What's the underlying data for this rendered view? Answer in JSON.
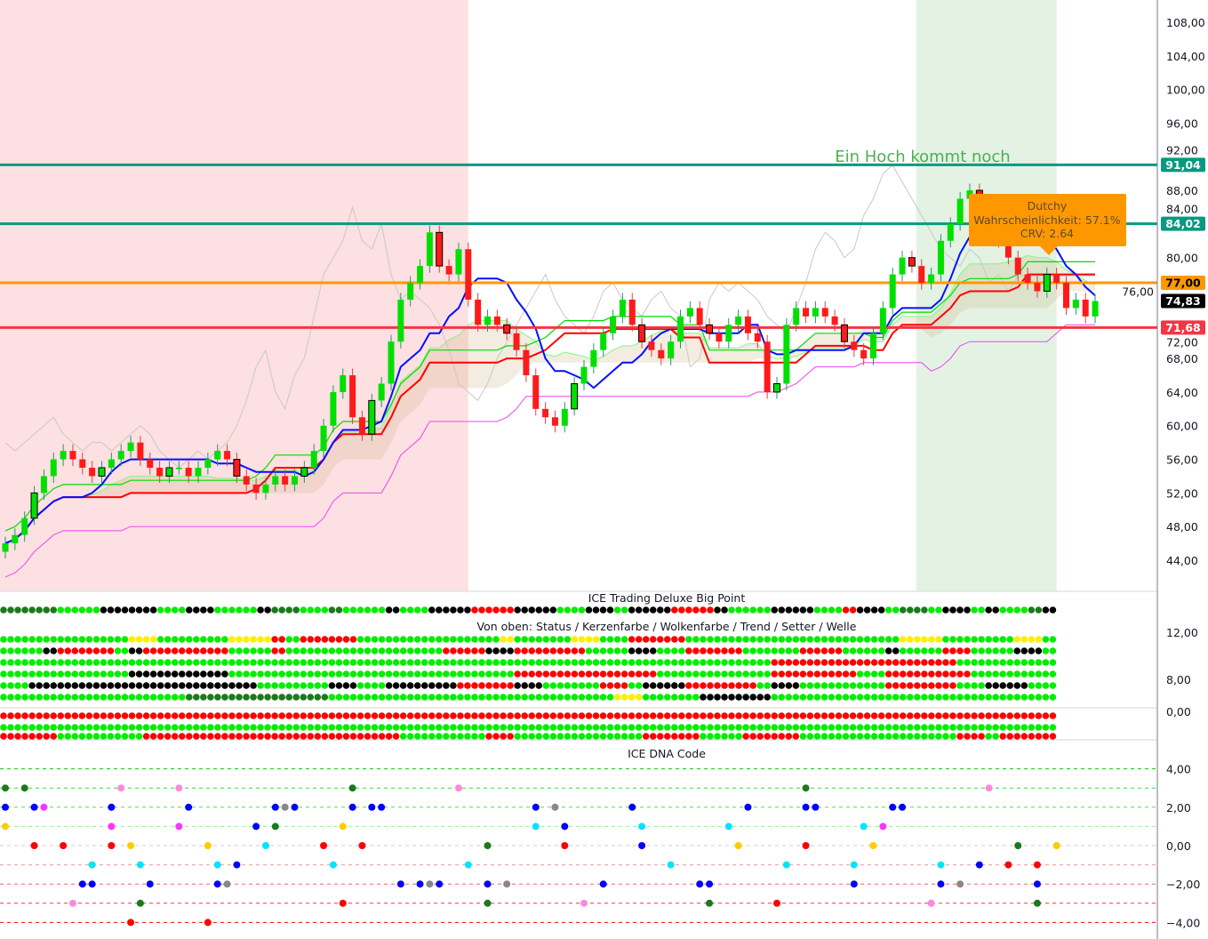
{
  "chart_data": {
    "type": "candlestick",
    "main": {
      "y_axis_ticks": [
        "108,00",
        "104,00",
        "100,00",
        "96,00",
        "92,00",
        "88,00",
        "84,00",
        "80,00",
        "76,00",
        "72,00",
        "68,00",
        "64,00",
        "60,00",
        "56,00",
        "52,00",
        "48,00",
        "44,00"
      ],
      "y_axis_values": [
        108,
        104,
        100,
        96,
        92,
        88,
        84,
        80,
        76,
        72,
        68,
        64,
        60,
        56,
        52,
        48,
        44
      ],
      "ylim": [
        42.5,
        110
      ],
      "closes": [
        46,
        47,
        49,
        52,
        54,
        56,
        57,
        56,
        55,
        54,
        55,
        56,
        57,
        58,
        56,
        55,
        54,
        55,
        55,
        54,
        55,
        56,
        57,
        56,
        54,
        53,
        52,
        53,
        54,
        53,
        54,
        55,
        57,
        60,
        64,
        66,
        61,
        59,
        63,
        65,
        70,
        75,
        77,
        79,
        83,
        79,
        78,
        81,
        75,
        72,
        73,
        72,
        71,
        69,
        66,
        62,
        61,
        60,
        62,
        65,
        67,
        69,
        71,
        73,
        75,
        72,
        70,
        69,
        68,
        70,
        73,
        74,
        72,
        71,
        70,
        72,
        73,
        71,
        70,
        64,
        65,
        72,
        74,
        73,
        74,
        73,
        72,
        70,
        69,
        68,
        71,
        74,
        78,
        80,
        79,
        77,
        78,
        82,
        84,
        87,
        88,
        86,
        84,
        82,
        80,
        78,
        77,
        76,
        78,
        77,
        74,
        75,
        73,
        74.83
      ],
      "levels": [
        {
          "value": 91.04,
          "label": "91,04",
          "color": "#089981"
        },
        {
          "value": 84.02,
          "label": "84,02",
          "color": "#089981"
        },
        {
          "value": 77.0,
          "label": "77,00",
          "color": "#ff9800"
        },
        {
          "value": 71.68,
          "label": "71,68",
          "color": "#f23645"
        }
      ],
      "last_price": {
        "value": 74.83,
        "label": "74,83"
      },
      "annotation": "Ein Hoch kommt noch",
      "callout": {
        "title": "Dutchy",
        "line1": "Wahrscheinlichkeit: 57.1%",
        "line2": "CRV: 2.64"
      },
      "zones": [
        {
          "from_index": 0,
          "to_index": 48,
          "color": "#fde0e2"
        },
        {
          "from_index": 95,
          "to_index": 109,
          "color": "#e3f2e3"
        }
      ]
    },
    "big_point": {
      "title": "ICE Trading Deluxe Big Point",
      "subtitle": "Von oben: Status / Kerzenfarbe / Wolkenfarbe / Trend / Setter / Welle",
      "y_axis_ticks": [
        "12,00",
        "8,00",
        "0,00"
      ],
      "rows": [
        "ddddgggkkkkggkkgggkddggdgggkggkkkrrrkkkggkkgkkkrrrkgggkkkggrkkgddgkkgkggdkkrrrrrr",
        "gggggggggyygggggyyyrgrrrrggggggggggyggggyyggrrrrgggggggggggggggyyygggggyyggrrrgrr",
        "gggkrrrrgkrrrrrrgggrgggggggggggrrrkkrrrrrgggkkggrrrrggggrrrgggkgggrrgggkkgrkkkkrrr",
        "ggggggggggggggggggggggggggggggggggggggggggggggggggggggrrrrrrrrrrrrrggggggggggggggggg",
        "gggggggggkkkkkkkggggggggggggggggggggrrrrrrrrrrggggggggrrrrrrggrrrrrrggggggkkkkgrrrrr",
        "ggkkkkkkkkkkkkkkkkgggggkkggkkkkkrrrrkkggggrrgkkkrrrrrgkkggggggrrrrrggkkkggkkkrrrrrr",
        "gggggggggggggddddddddddggggggggggggggggggggyyggggkkkkkgggggggggggggggggggggggggggrr",
        "rrrrrrrrrrrrrrrrrrrrrrrrrrrrrrrrrrrrrrrrrrrrrrrrrrrrrrrrrrrrrrrrrrrrrrrrrrrrrrrrrrr",
        "ggggggggggggggggggggggggggggggggggggggggggggggggggggggggggggggggggggggggggggggggggg",
        "rrrrggggggrrrrrrrrrrrrrrrrrrggggggrrgggggggggrrrrgggrrrrgggggggggggrrgrrrrrrrrrrrrr"
      ]
    },
    "dna_code": {
      "title": "ICE DNA Code",
      "y_axis_ticks": [
        "4,00",
        "2,00",
        "0,00",
        "−2,00",
        "−4,00"
      ],
      "y_axis_values": [
        4,
        2,
        0,
        -2,
        -4
      ],
      "points": [
        [
          0,
          3,
          "#1b7a1b"
        ],
        [
          2,
          3,
          "#1b7a1b"
        ],
        [
          12,
          3,
          "#ff88dd"
        ],
        [
          18,
          3,
          "#ff88dd"
        ],
        [
          36,
          3,
          "#1b7a1b"
        ],
        [
          47,
          3,
          "#ff88dd"
        ],
        [
          83,
          3,
          "#1b7a1b"
        ],
        [
          102,
          3,
          "#ff88dd"
        ],
        [
          0,
          2,
          "#0000ff"
        ],
        [
          3,
          2,
          "#0000ff"
        ],
        [
          4,
          2,
          "#ff33ff"
        ],
        [
          11,
          2,
          "#0000ff"
        ],
        [
          19,
          2,
          "#0000ff"
        ],
        [
          28,
          2,
          "#0000ff"
        ],
        [
          29,
          2,
          "#888888"
        ],
        [
          30,
          2,
          "#0000ff"
        ],
        [
          36,
          2,
          "#0000ff"
        ],
        [
          38,
          2,
          "#0000ff"
        ],
        [
          39,
          2,
          "#0000ff"
        ],
        [
          55,
          2,
          "#0000ff"
        ],
        [
          57,
          2,
          "#888888"
        ],
        [
          65,
          2,
          "#0000ff"
        ],
        [
          77,
          2,
          "#0000ff"
        ],
        [
          83,
          2,
          "#0000ff"
        ],
        [
          84,
          2,
          "#0000ff"
        ],
        [
          92,
          2,
          "#0000ff"
        ],
        [
          93,
          2,
          "#0000ff"
        ],
        [
          0,
          1,
          "#ffcc00"
        ],
        [
          11,
          1,
          "#ff33ff"
        ],
        [
          18,
          1,
          "#ff33ff"
        ],
        [
          26,
          1,
          "#0000ff"
        ],
        [
          28,
          1,
          "#1b7a1b"
        ],
        [
          35,
          1,
          "#ffcc00"
        ],
        [
          55,
          1,
          "#00e5ff"
        ],
        [
          58,
          1,
          "#0000ff"
        ],
        [
          66,
          1,
          "#00e5ff"
        ],
        [
          75,
          1,
          "#00e5ff"
        ],
        [
          89,
          1,
          "#00e5ff"
        ],
        [
          91,
          1,
          "#ff33ff"
        ],
        [
          3,
          0,
          "#ff0000"
        ],
        [
          6,
          0,
          "#ff0000"
        ],
        [
          11,
          0,
          "#ff0000"
        ],
        [
          13,
          0,
          "#ffcc00"
        ],
        [
          21,
          0,
          "#ffcc00"
        ],
        [
          27,
          0,
          "#00e5ff"
        ],
        [
          33,
          0,
          "#ff0000"
        ],
        [
          37,
          0,
          "#ff0000"
        ],
        [
          50,
          0,
          "#1b7a1b"
        ],
        [
          58,
          0,
          "#ff0000"
        ],
        [
          66,
          0,
          "#0000ff"
        ],
        [
          76,
          0,
          "#ffcc00"
        ],
        [
          83,
          0,
          "#ff0000"
        ],
        [
          90,
          0,
          "#ffcc00"
        ],
        [
          105,
          0,
          "#1b7a1b"
        ],
        [
          109,
          0,
          "#ffcc00"
        ],
        [
          9,
          -1,
          "#00e5ff"
        ],
        [
          14,
          -1,
          "#00e5ff"
        ],
        [
          22,
          -1,
          "#00e5ff"
        ],
        [
          24,
          -1,
          "#0000ff"
        ],
        [
          34,
          -1,
          "#00e5ff"
        ],
        [
          48,
          -1,
          "#00e5ff"
        ],
        [
          69,
          -1,
          "#00e5ff"
        ],
        [
          81,
          -1,
          "#00e5ff"
        ],
        [
          88,
          -1,
          "#00e5ff"
        ],
        [
          97,
          -1,
          "#00e5ff"
        ],
        [
          101,
          -1,
          "#0000ff"
        ],
        [
          104,
          -1,
          "#ff0000"
        ],
        [
          107,
          -1,
          "#ff0000"
        ],
        [
          8,
          -2,
          "#0000ff"
        ],
        [
          9,
          -2,
          "#0000ff"
        ],
        [
          15,
          -2,
          "#0000ff"
        ],
        [
          22,
          -2,
          "#0000ff"
        ],
        [
          23,
          -2,
          "#888888"
        ],
        [
          41,
          -2,
          "#0000ff"
        ],
        [
          43,
          -2,
          "#0000ff"
        ],
        [
          44,
          -2,
          "#888888"
        ],
        [
          45,
          -2,
          "#0000ff"
        ],
        [
          50,
          -2,
          "#0000ff"
        ],
        [
          52,
          -2,
          "#888888"
        ],
        [
          62,
          -2,
          "#0000ff"
        ],
        [
          72,
          -2,
          "#0000ff"
        ],
        [
          73,
          -2,
          "#0000ff"
        ],
        [
          88,
          -2,
          "#0000ff"
        ],
        [
          97,
          -2,
          "#0000ff"
        ],
        [
          99,
          -2,
          "#888888"
        ],
        [
          107,
          -2,
          "#0000ff"
        ],
        [
          7,
          -3,
          "#ff88dd"
        ],
        [
          14,
          -3,
          "#1b7a1b"
        ],
        [
          35,
          -3,
          "#ff0000"
        ],
        [
          50,
          -3,
          "#1b7a1b"
        ],
        [
          60,
          -3,
          "#ff88dd"
        ],
        [
          73,
          -3,
          "#1b7a1b"
        ],
        [
          80,
          -3,
          "#ff0000"
        ],
        [
          96,
          -3,
          "#ff88dd"
        ],
        [
          107,
          -3,
          "#1b7a1b"
        ],
        [
          13,
          -4,
          "#ff0000"
        ],
        [
          21,
          -4,
          "#ff0000"
        ]
      ]
    }
  },
  "colors": {
    "up": "#00e000",
    "down": "#ff1a1a",
    "tenkan": "#0010ff",
    "kijun": "#ff0000",
    "dot_colors": {
      "g": "#00ee00",
      "d": "#1b7a1b",
      "k": "#000000",
      "r": "#ff0000",
      "y": "#ffee00"
    }
  }
}
